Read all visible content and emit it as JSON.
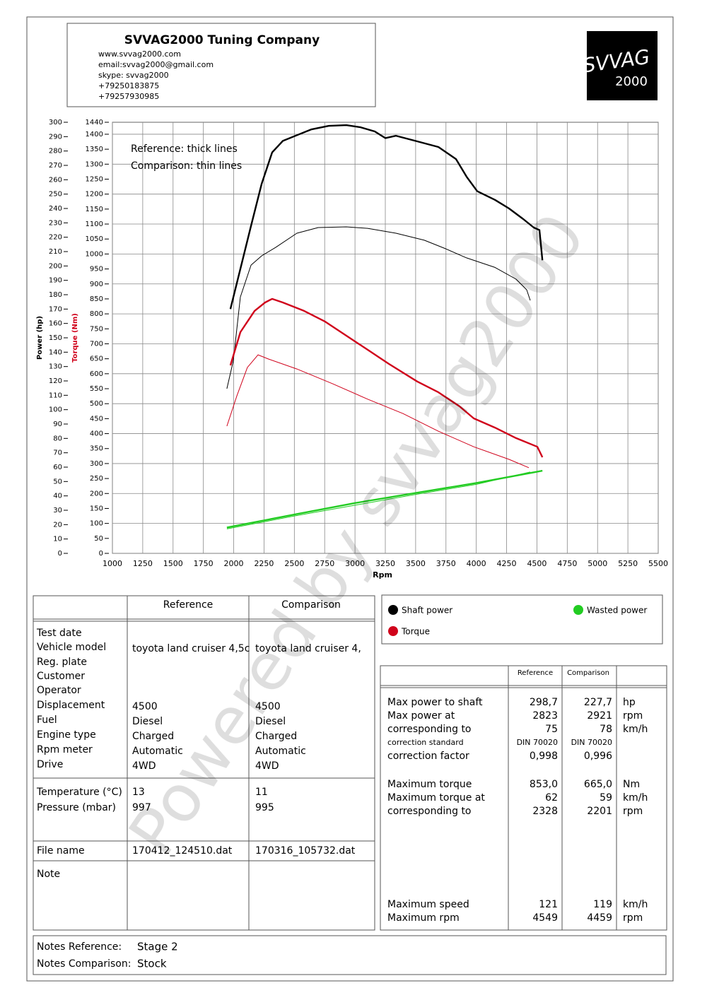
{
  "header": {
    "title": "SVVAG2000 Tuning Company",
    "lines": [
      "www.svvag2000.com",
      "email:svvag2000@gmail.com",
      "skype: svvag2000",
      "+79250183875",
      "+79257930985"
    ]
  },
  "logo": {
    "top": "SVVAG",
    "bottom": "2000"
  },
  "watermark": "Powered by svvag2000",
  "chart_data": {
    "type": "line",
    "xlabel": "Rpm",
    "ylabel": "Power (hp)",
    "y2label": "Torque (Nm)",
    "annotations": [
      "Reference: thick lines",
      "Comparison: thin lines"
    ],
    "xlim": [
      1000,
      5500
    ],
    "xticks": [
      1000,
      1250,
      1500,
      1750,
      2000,
      2250,
      2500,
      2750,
      3000,
      3250,
      3500,
      3750,
      4000,
      4250,
      4500,
      4750,
      5000,
      5250,
      5500
    ],
    "ylim": [
      0,
      300
    ],
    "yticks": [
      0,
      10,
      20,
      30,
      40,
      50,
      60,
      70,
      80,
      90,
      100,
      110,
      120,
      130,
      140,
      150,
      160,
      170,
      180,
      190,
      200,
      210,
      220,
      230,
      240,
      250,
      260,
      270,
      280,
      290,
      300
    ],
    "y2lim": [
      0,
      1440
    ],
    "y2ticks": [
      0,
      50,
      100,
      150,
      200,
      250,
      300,
      350,
      400,
      450,
      500,
      550,
      600,
      650,
      700,
      750,
      800,
      850,
      900,
      950,
      1000,
      1050,
      1100,
      1150,
      1200,
      1250,
      1300,
      1350,
      1400,
      1440
    ],
    "grid": true,
    "series": [
      {
        "name": "Shaft power",
        "color": "#000000",
        "reference": {
          "x": [
            1973,
            2055,
            2143,
            2230,
            2317,
            2405,
            2521,
            2638,
            2784,
            2929,
            3046,
            3163,
            3250,
            3338,
            3513,
            3688,
            3833,
            3921,
            4008,
            4154,
            4270,
            4387,
            4474,
            4521,
            4545
          ],
          "values": [
            170,
            198,
            228,
            257,
            279,
            287,
            291,
            295,
            297.5,
            298,
            296.5,
            293.6,
            289,
            290.6,
            286.7,
            282.8,
            274.4,
            262,
            252,
            246,
            240,
            232.6,
            226.7,
            225,
            204
          ]
        },
        "comparison": {
          "x": [
            1944,
            1997,
            2055,
            2143,
            2230,
            2347,
            2521,
            2696,
            2929,
            3104,
            3338,
            3571,
            3746,
            3920,
            4154,
            4328,
            4416,
            4445
          ],
          "values": [
            114.6,
            134,
            178.5,
            200.6,
            207,
            213,
            222.8,
            226.7,
            227.2,
            226.2,
            222.8,
            217.9,
            212,
            205.6,
            199,
            190.8,
            183.4,
            176
          ]
        }
      },
      {
        "name": "Torque",
        "color": "#d0021b",
        "axis": "y2",
        "reference": {
          "x": [
            1973,
            2055,
            2172,
            2259,
            2317,
            2405,
            2580,
            2754,
            2929,
            3104,
            3279,
            3513,
            3688,
            3862,
            3979,
            4154,
            4328,
            4503,
            4545
          ],
          "values": [
            628,
            739,
            810,
            838,
            850,
            838,
            810,
            774,
            727,
            680,
            633,
            574,
            538,
            491,
            451,
            420,
            385,
            356,
            321
          ]
        },
        "comparison": {
          "x": [
            1944,
            2026,
            2113,
            2201,
            2288,
            2521,
            2813,
            3104,
            3396,
            3688,
            3979,
            4270,
            4433
          ],
          "values": [
            425,
            526,
            621,
            663,
            649,
            616,
            567,
            515,
            467,
            408,
            356,
            314,
            286
          ]
        }
      },
      {
        "name": "Wasted power",
        "color": "#22cc22",
        "reference": {
          "x": [
            1944,
            2500,
            3000,
            3500,
            4000,
            4545
          ],
          "values": [
            18,
            27,
            35,
            42,
            49,
            57.5
          ]
        },
        "comparison": {
          "x": [
            1944,
            2500,
            3000,
            3500,
            4000,
            4445
          ],
          "values": [
            17,
            26,
            33.5,
            41,
            48,
            56.6
          ]
        }
      }
    ]
  },
  "specs": {
    "columns": [
      "Reference",
      "Comparison"
    ],
    "rows": [
      {
        "label": "Test date"
      },
      {
        "label": "Vehicle model",
        "reference": "toyota land cruiser 4,5c",
        "comparison": "toyota land cruiser 4,"
      },
      {
        "label": "Reg. plate"
      },
      {
        "label": "Customer"
      },
      {
        "label": "Operator"
      },
      {
        "label": "Displacement",
        "reference": "4500",
        "comparison": "4500"
      },
      {
        "label": "Fuel",
        "reference": "Diesel",
        "comparison": "Diesel"
      },
      {
        "label": "Engine type",
        "reference": "Charged",
        "comparison": "Charged"
      },
      {
        "label": "Rpm meter",
        "reference": "Automatic",
        "comparison": "Automatic"
      },
      {
        "label": "Drive",
        "reference": "4WD",
        "comparison": "4WD"
      },
      {
        "label": "Temperature (°C)",
        "reference": "13",
        "comparison": "11"
      },
      {
        "label": "Pressure (mbar)",
        "reference": "997",
        "comparison": "995"
      },
      {
        "label": "File name",
        "reference": "170412_124510.dat",
        "comparison": "170316_105732.dat"
      },
      {
        "label": "Note"
      }
    ]
  },
  "results": {
    "columns": [
      "Reference",
      "Comparison"
    ],
    "rows": [
      {
        "label": "Max power to shaft",
        "reference": "298,7",
        "comparison": "227,7",
        "unit": "hp"
      },
      {
        "label": "Max power at",
        "reference": "2823",
        "comparison": "2921",
        "unit": "rpm"
      },
      {
        "label": "corresponding to",
        "reference": "75",
        "comparison": "78",
        "unit": "km/h"
      },
      {
        "label": "correction standard",
        "reference": "DIN 70020",
        "comparison": "DIN 70020"
      },
      {
        "label": "correction factor",
        "reference": "0,998",
        "comparison": "0,996"
      },
      {
        "label": "Maximum torque",
        "reference": "853,0",
        "comparison": "665,0",
        "unit": "Nm"
      },
      {
        "label": "Maximum torque at",
        "reference": "62",
        "comparison": "59",
        "unit": "km/h"
      },
      {
        "label": "corresponding to",
        "reference": "2328",
        "comparison": "2201",
        "unit": "rpm"
      },
      {
        "label": "Maximum speed",
        "reference": "121",
        "comparison": "119",
        "unit": "km/h"
      },
      {
        "label": "Maximum rpm",
        "reference": "4549",
        "comparison": "4459",
        "unit": "rpm"
      }
    ]
  },
  "notes": [
    {
      "label": "Notes Reference:",
      "value": "Stage 2"
    },
    {
      "label": "Notes Comparison:",
      "value": "Stock"
    }
  ]
}
